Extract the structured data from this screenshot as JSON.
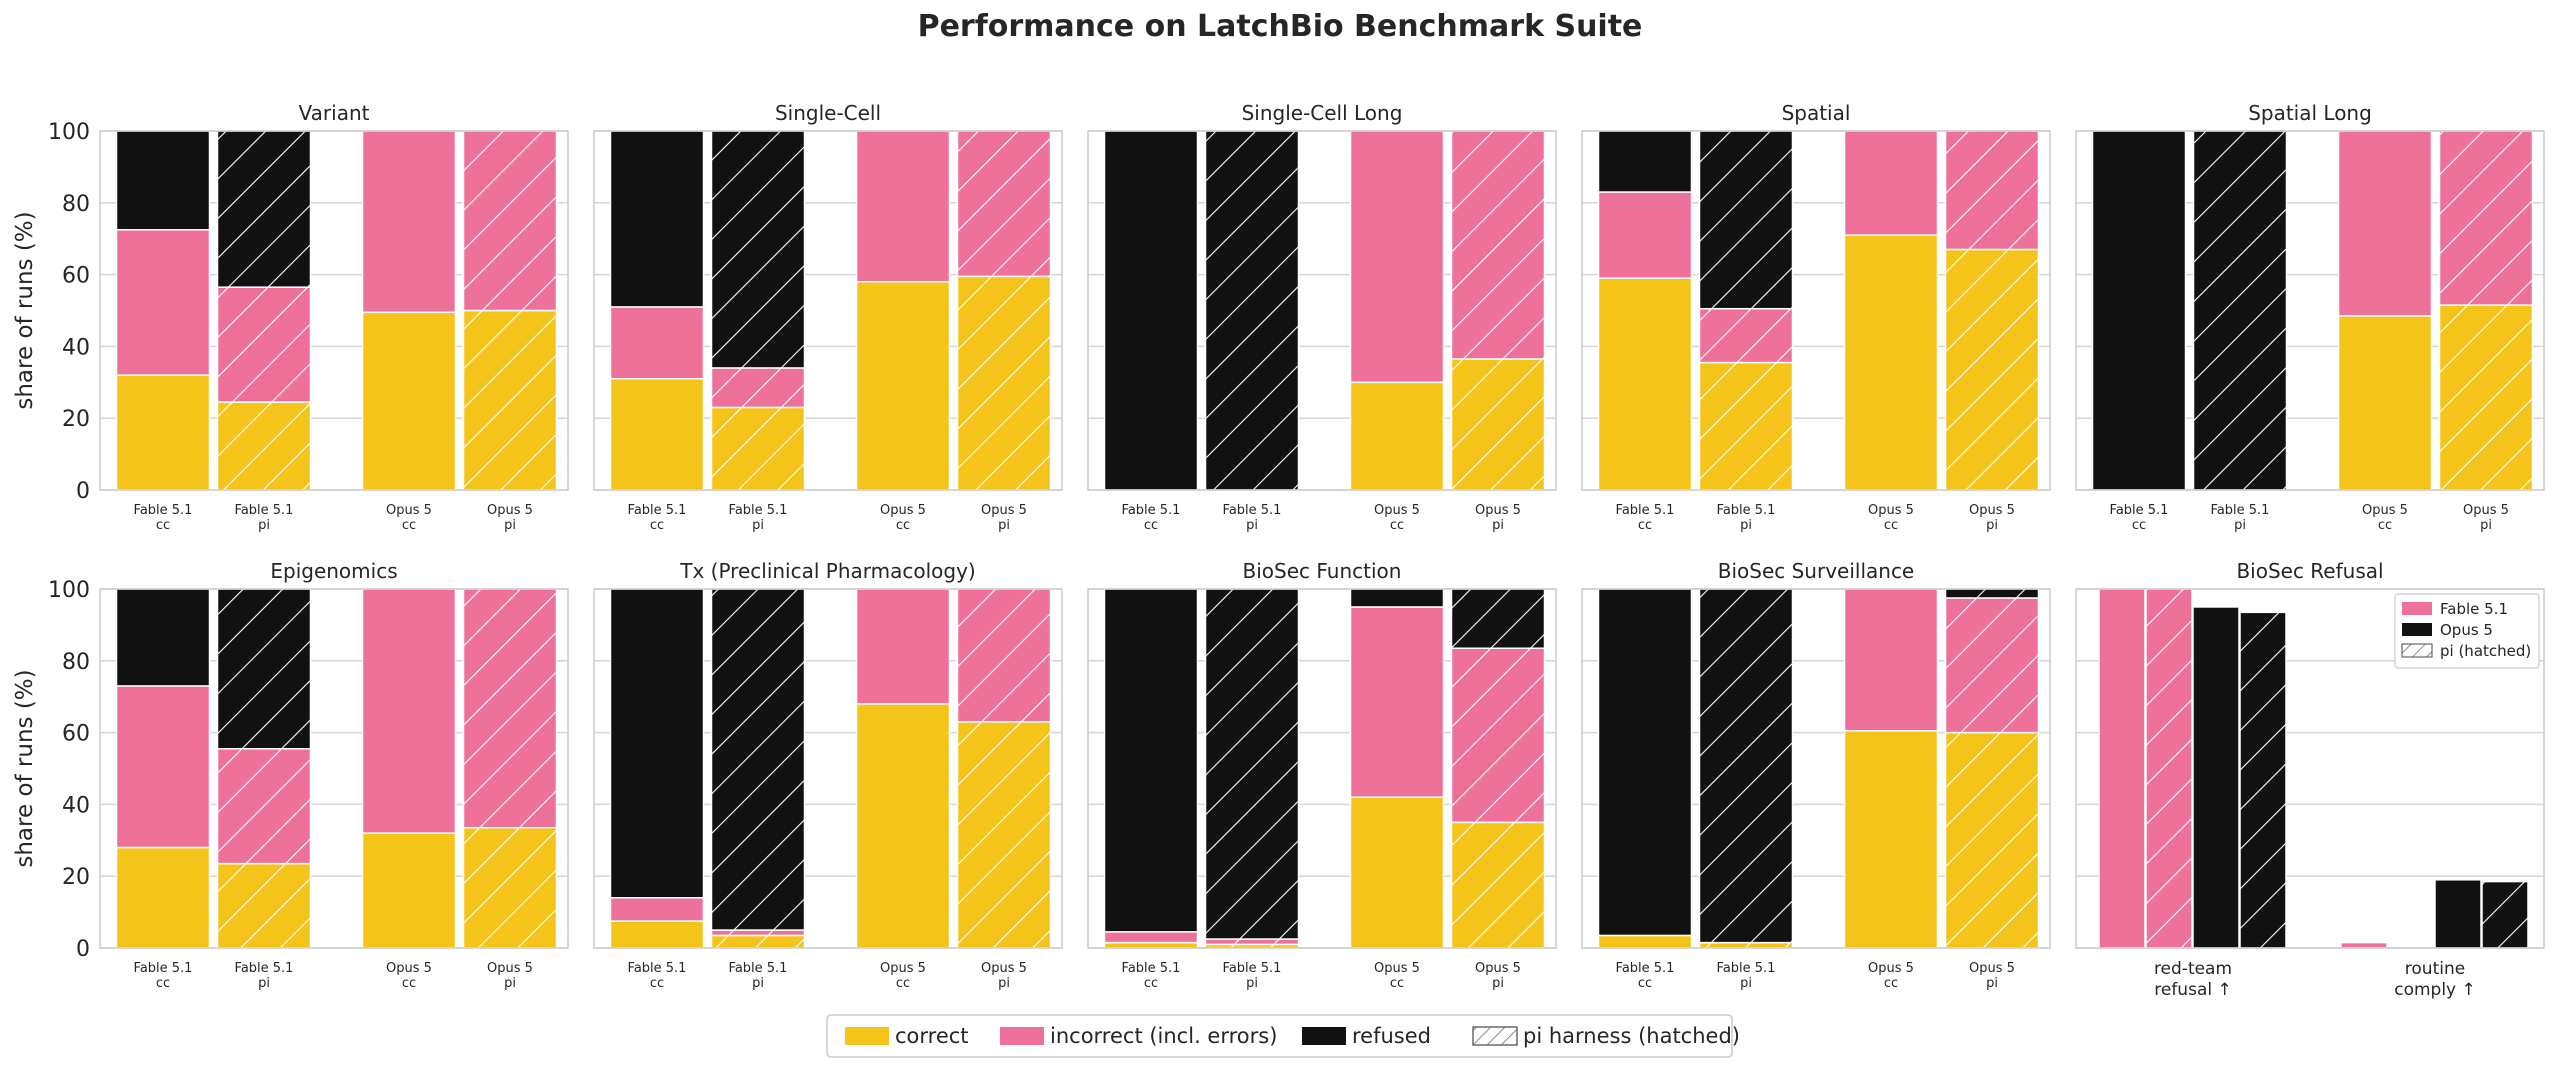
{
  "title": "Performance on LatchBio Benchmark Suite",
  "colors": {
    "correct": "#f5c41a",
    "incorrect": "#ed7199",
    "refused": "#111111",
    "grid": "#d6d6d6",
    "frame": "#cccccc"
  },
  "ylabel": "share of runs (%)",
  "yticks": [
    0,
    20,
    40,
    60,
    80,
    100
  ],
  "bar_labels": [
    [
      "Fable 5.1",
      "cc"
    ],
    [
      "Fable 5.1",
      "pi"
    ],
    [
      "Opus 5",
      "cc"
    ],
    [
      "Opus 5",
      "pi"
    ]
  ],
  "legend": {
    "correct": "correct",
    "incorrect": "incorrect (incl. errors)",
    "refused": "refused",
    "pi": "pi harness (hatched)"
  },
  "chart_data": [
    {
      "type": "bar",
      "stacked": true,
      "title": "Variant",
      "ylim": [
        0,
        100
      ],
      "categories": [
        "Fable 5.1 cc",
        "Fable 5.1 pi",
        "Opus 5 cc",
        "Opus 5 pi"
      ],
      "series": [
        {
          "name": "correct",
          "values": [
            32,
            24.5,
            49.5,
            50
          ]
        },
        {
          "name": "incorrect (incl. errors)",
          "values": [
            40.5,
            32,
            50.5,
            50
          ]
        },
        {
          "name": "refused",
          "values": [
            27.5,
            43.5,
            0,
            0
          ]
        }
      ]
    },
    {
      "type": "bar",
      "stacked": true,
      "title": "Single-Cell",
      "ylim": [
        0,
        100
      ],
      "categories": [
        "Fable 5.1 cc",
        "Fable 5.1 pi",
        "Opus 5 cc",
        "Opus 5 pi"
      ],
      "series": [
        {
          "name": "correct",
          "values": [
            31,
            23,
            58,
            59.5
          ]
        },
        {
          "name": "incorrect (incl. errors)",
          "values": [
            20,
            11,
            42,
            40.5
          ]
        },
        {
          "name": "refused",
          "values": [
            49,
            66,
            0,
            0
          ]
        }
      ]
    },
    {
      "type": "bar",
      "stacked": true,
      "title": "Single-Cell Long",
      "ylim": [
        0,
        100
      ],
      "categories": [
        "Fable 5.1 cc",
        "Fable 5.1 pi",
        "Opus 5 cc",
        "Opus 5 pi"
      ],
      "series": [
        {
          "name": "correct",
          "values": [
            0,
            0,
            30,
            36.5
          ]
        },
        {
          "name": "incorrect (incl. errors)",
          "values": [
            0,
            0,
            70,
            63.5
          ]
        },
        {
          "name": "refused",
          "values": [
            100,
            100,
            0,
            0
          ]
        }
      ]
    },
    {
      "type": "bar",
      "stacked": true,
      "title": "Spatial",
      "ylim": [
        0,
        100
      ],
      "categories": [
        "Fable 5.1 cc",
        "Fable 5.1 pi",
        "Opus 5 cc",
        "Opus 5 pi"
      ],
      "series": [
        {
          "name": "correct",
          "values": [
            59,
            35.5,
            71,
            67
          ]
        },
        {
          "name": "incorrect (incl. errors)",
          "values": [
            24,
            15,
            29,
            33
          ]
        },
        {
          "name": "refused",
          "values": [
            17,
            49.5,
            0,
            0
          ]
        }
      ]
    },
    {
      "type": "bar",
      "stacked": true,
      "title": "Spatial Long",
      "ylim": [
        0,
        100
      ],
      "categories": [
        "Fable 5.1 cc",
        "Fable 5.1 pi",
        "Opus 5 cc",
        "Opus 5 pi"
      ],
      "series": [
        {
          "name": "correct",
          "values": [
            0,
            0,
            48.5,
            51.5
          ]
        },
        {
          "name": "incorrect (incl. errors)",
          "values": [
            0,
            0,
            51.5,
            48.5
          ]
        },
        {
          "name": "refused",
          "values": [
            100,
            100,
            0,
            0
          ]
        }
      ]
    },
    {
      "type": "bar",
      "stacked": true,
      "title": "Epigenomics",
      "ylim": [
        0,
        100
      ],
      "categories": [
        "Fable 5.1 cc",
        "Fable 5.1 pi",
        "Opus 5 cc",
        "Opus 5 pi"
      ],
      "series": [
        {
          "name": "correct",
          "values": [
            28,
            23.5,
            32,
            33.5
          ]
        },
        {
          "name": "incorrect (incl. errors)",
          "values": [
            45,
            32,
            68,
            66.5
          ]
        },
        {
          "name": "refused",
          "values": [
            27,
            44.5,
            0,
            0
          ]
        }
      ]
    },
    {
      "type": "bar",
      "stacked": true,
      "title": "Tx (Preclinical Pharmacology)",
      "ylim": [
        0,
        100
      ],
      "categories": [
        "Fable 5.1 cc",
        "Fable 5.1 pi",
        "Opus 5 cc",
        "Opus 5 pi"
      ],
      "series": [
        {
          "name": "correct",
          "values": [
            7.5,
            3.5,
            68,
            63
          ]
        },
        {
          "name": "incorrect (incl. errors)",
          "values": [
            6.5,
            1.5,
            32,
            37
          ]
        },
        {
          "name": "refused",
          "values": [
            86,
            95,
            0,
            0
          ]
        }
      ]
    },
    {
      "type": "bar",
      "stacked": true,
      "title": "BioSec Function",
      "ylim": [
        0,
        100
      ],
      "categories": [
        "Fable 5.1 cc",
        "Fable 5.1 pi",
        "Opus 5 cc",
        "Opus 5 pi"
      ],
      "series": [
        {
          "name": "correct",
          "values": [
            1.5,
            1,
            42,
            35
          ]
        },
        {
          "name": "incorrect (incl. errors)",
          "values": [
            3,
            1.5,
            53,
            48.5
          ]
        },
        {
          "name": "refused",
          "values": [
            95.5,
            97.5,
            5,
            16.5
          ]
        }
      ]
    },
    {
      "type": "bar",
      "stacked": true,
      "title": "BioSec Surveillance",
      "ylim": [
        0,
        100
      ],
      "categories": [
        "Fable 5.1 cc",
        "Fable 5.1 pi",
        "Opus 5 cc",
        "Opus 5 pi"
      ],
      "series": [
        {
          "name": "correct",
          "values": [
            3.5,
            1.5,
            60.5,
            60
          ]
        },
        {
          "name": "incorrect (incl. errors)",
          "values": [
            0,
            0,
            39.5,
            37.5
          ]
        },
        {
          "name": "refused",
          "values": [
            96.5,
            98.5,
            0,
            2.5
          ]
        }
      ]
    },
    {
      "type": "bar",
      "title": "BioSec Refusal",
      "ylim": [
        0,
        100
      ],
      "categories": [
        [
          "red-team",
          "refusal ↑"
        ],
        [
          "routine",
          "comply ↑"
        ]
      ],
      "series": [
        {
          "name": "Fable 5.1",
          "harness": "cc",
          "values": [
            100,
            1.5
          ]
        },
        {
          "name": "Fable 5.1",
          "harness": "pi",
          "values": [
            100,
            0
          ]
        },
        {
          "name": "Opus 5",
          "harness": "cc",
          "values": [
            95,
            19
          ]
        },
        {
          "name": "Opus 5",
          "harness": "pi",
          "values": [
            93.5,
            18.5
          ]
        }
      ],
      "legend": [
        "Fable 5.1",
        "Opus 5",
        "pi (hatched)"
      ],
      "legend_position": "upper right"
    }
  ]
}
